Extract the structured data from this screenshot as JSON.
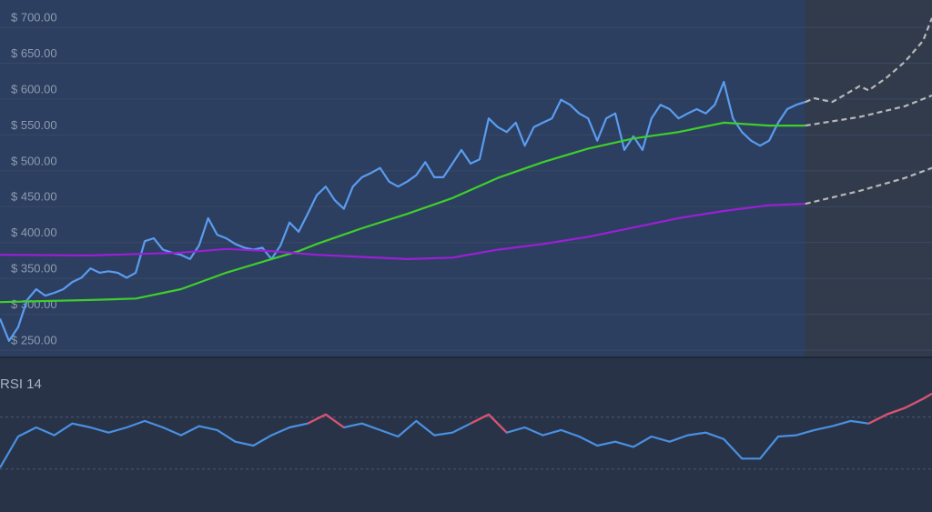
{
  "chart_data": [
    {
      "type": "line",
      "ylim": [
        240,
        738
      ],
      "xlim": [
        0,
        103
      ],
      "yticks": [
        {
          "value": 250,
          "label": "$ 250.00"
        },
        {
          "value": 300,
          "label": "$ 300.00"
        },
        {
          "value": 350,
          "label": "$ 350.00"
        },
        {
          "value": 400,
          "label": "$ 400.00"
        },
        {
          "value": 450,
          "label": "$ 450.00"
        },
        {
          "value": 500,
          "label": "$ 500.00"
        },
        {
          "value": 550,
          "label": "$ 550.00"
        },
        {
          "value": 600,
          "label": "$ 600.00"
        },
        {
          "value": 650,
          "label": "$ 650.00"
        },
        {
          "value": 700,
          "label": "$ 700.00"
        }
      ],
      "grid": true,
      "forecast_start": 89,
      "series": [
        {
          "color": "#5a9cf0",
          "dash": false,
          "x": [
            0,
            1,
            2,
            3,
            4,
            5,
            6,
            7,
            8,
            9,
            10,
            11,
            12,
            13,
            14,
            15,
            16,
            17,
            18,
            19,
            20,
            21,
            22,
            23,
            24,
            25,
            26,
            27,
            28,
            29,
            30,
            31,
            32,
            33,
            34,
            35,
            36,
            37,
            38,
            39,
            40,
            41,
            42,
            43,
            44,
            45,
            46,
            47,
            48,
            49,
            50,
            51,
            52,
            53,
            54,
            55,
            56,
            57,
            58,
            59,
            60,
            61,
            62,
            63,
            64,
            65,
            66,
            67,
            68,
            69,
            70,
            71,
            72,
            73,
            74,
            75,
            76,
            77,
            78,
            79,
            80,
            81,
            82,
            83,
            84,
            85,
            86,
            87,
            88,
            89
          ],
          "values": [
            294,
            263,
            282,
            320,
            335,
            326,
            330,
            335,
            345,
            351,
            364,
            358,
            360,
            358,
            351,
            358,
            402,
            406,
            390,
            386,
            383,
            377,
            396,
            434,
            411,
            406,
            398,
            393,
            390,
            393,
            377,
            396,
            428,
            415,
            440,
            466,
            478,
            459,
            447,
            478,
            491,
            497,
            504,
            485,
            478,
            485,
            494,
            512,
            491,
            491,
            510,
            529,
            510,
            516,
            573,
            561,
            554,
            567,
            535,
            561,
            567,
            573,
            599,
            592,
            580,
            573,
            542,
            573,
            580,
            529,
            548,
            529,
            573,
            592,
            586,
            573,
            580,
            586,
            580,
            592,
            624,
            573,
            554,
            542,
            535,
            542,
            567,
            586,
            592,
            596
          ]
        },
        {
          "color": "#3ecf2a",
          "dash": false,
          "x": [
            0,
            10,
            15,
            20,
            25,
            30,
            33,
            35,
            40,
            45,
            50,
            55,
            60,
            65,
            70,
            75,
            80,
            85,
            89
          ],
          "values": [
            317,
            320,
            322,
            335,
            358,
            377,
            388,
            398,
            420,
            440,
            462,
            490,
            512,
            531,
            545,
            554,
            567,
            563,
            563
          ]
        },
        {
          "color": "#9b1fd6",
          "dash": false,
          "x": [
            0,
            10,
            20,
            25,
            30,
            35,
            45,
            50,
            55,
            60,
            65,
            70,
            75,
            80,
            85,
            89
          ],
          "values": [
            383,
            382,
            386,
            391,
            388,
            383,
            377,
            379,
            390,
            398,
            408,
            421,
            434,
            444,
            452,
            454
          ]
        },
        {
          "color": "#b8b8b8",
          "dash": true,
          "x": [
            89,
            90,
            92,
            95,
            96,
            98,
            100,
            102,
            103
          ],
          "values": [
            596,
            601,
            596,
            618,
            612,
            630,
            652,
            681,
            713
          ]
        },
        {
          "color": "#b8b8b8",
          "dash": true,
          "x": [
            89,
            95,
            100,
            103
          ],
          "values": [
            563,
            575,
            590,
            605
          ]
        },
        {
          "color": "#b8b8b8",
          "dash": true,
          "x": [
            89,
            95,
            100,
            103
          ],
          "values": [
            454,
            472,
            490,
            504
          ]
        }
      ]
    },
    {
      "type": "line",
      "title": "RSI 14",
      "ylim": [
        13,
        90
      ],
      "xlim": [
        0,
        103
      ],
      "hlines": [
        30,
        70
      ],
      "overbought_color": "#e0506a",
      "series": [
        {
          "color": "#4a90e2",
          "dash": false,
          "x": [
            0,
            2,
            4,
            6,
            8,
            10,
            12,
            14,
            16,
            18,
            20,
            22,
            24,
            26,
            28,
            30,
            32,
            34,
            36,
            38,
            40,
            42,
            44,
            46,
            48,
            50,
            52,
            54,
            56,
            58,
            60,
            62,
            64,
            66,
            68,
            70,
            72,
            74,
            76,
            78,
            80,
            82,
            84,
            86,
            88,
            90,
            92,
            94,
            96,
            98,
            100,
            102,
            103
          ],
          "values": [
            31,
            55,
            62,
            56,
            65,
            62,
            58,
            62,
            67,
            62,
            56,
            63,
            60,
            51,
            48,
            56,
            62,
            65,
            72,
            62,
            65,
            60,
            55,
            67,
            56,
            58,
            65,
            72,
            58,
            62,
            56,
            60,
            55,
            48,
            51,
            47,
            55,
            51,
            56,
            58,
            53,
            38,
            38,
            55,
            56,
            60,
            63,
            67,
            65,
            72,
            77,
            84,
            88
          ]
        }
      ]
    }
  ]
}
